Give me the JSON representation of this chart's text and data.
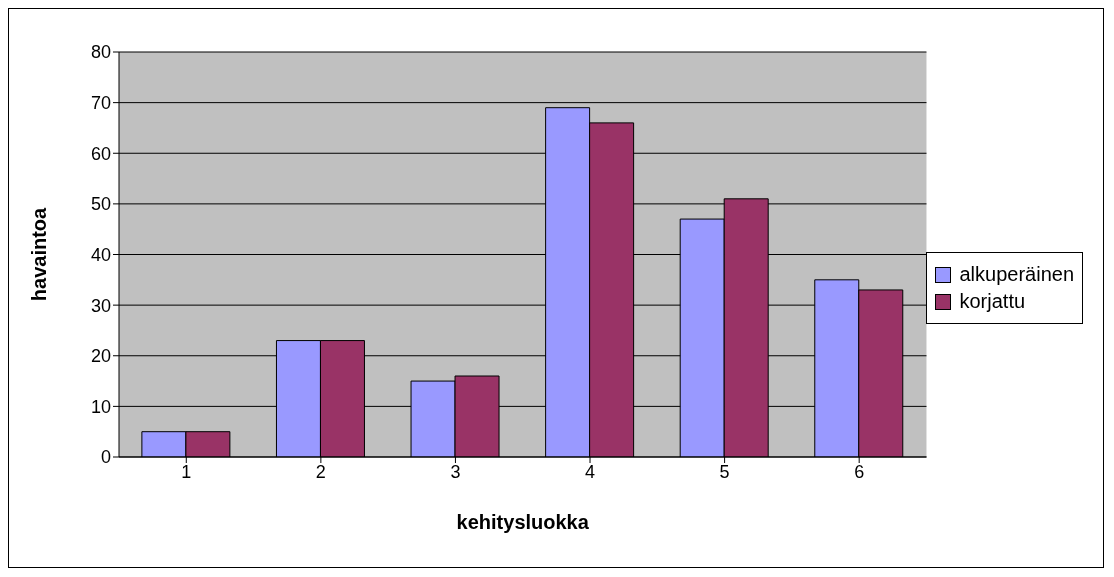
{
  "chart_data": {
    "type": "bar",
    "xlabel": "kehitysluokka",
    "ylabel": "havaintoa",
    "categories": [
      "1",
      "2",
      "3",
      "4",
      "5",
      "6"
    ],
    "series": [
      {
        "name": "alkuperäinen",
        "color": "#9999ff",
        "values": [
          5,
          23,
          15,
          69,
          47,
          35
        ]
      },
      {
        "name": "korjattu",
        "color": "#993366",
        "values": [
          5,
          23,
          16,
          66,
          51,
          33
        ]
      }
    ],
    "ylim": [
      0,
      80
    ],
    "yticks": [
      0,
      10,
      20,
      30,
      40,
      50,
      60,
      70,
      80
    ],
    "grid": "y",
    "legend": "right"
  }
}
